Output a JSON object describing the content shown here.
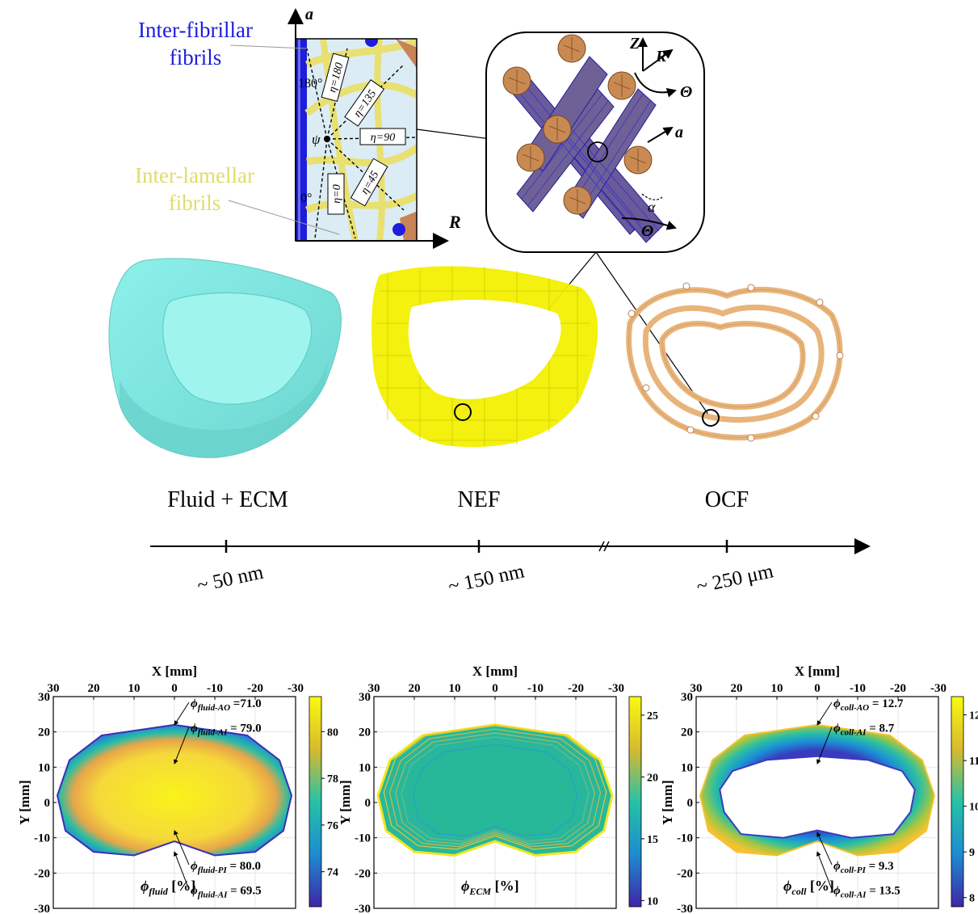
{
  "top": {
    "inset_labels": {
      "inter_fibrillar_line1": "Inter-fibrillar",
      "inter_fibrillar_line2": "fibrils",
      "inter_lamellar_line1": "Inter-lamellar",
      "inter_lamellar_line2": "fibrils",
      "axis_a": "a",
      "axis_R": "R",
      "psi": "ψ",
      "deg180": "180°",
      "deg0": "0°",
      "eta180": "η=180",
      "eta135": "η=135",
      "eta90": "η=90",
      "eta45": "η=45",
      "eta0": "η=0"
    },
    "lamella_labels": {
      "Z": "Z",
      "R": "R",
      "Theta": "Θ",
      "a": "a",
      "alpha": "α",
      "Theta2": "Θ"
    },
    "components": [
      "Fluid + ECM",
      "NEF",
      "OCF"
    ],
    "scales": [
      "~ 50 nm",
      "~ 150 nm",
      "~ 250 μm"
    ],
    "colors": {
      "fluid": "#7fe8e0",
      "nef": "#f2f000",
      "ocf": "#e8b47a",
      "inter_fibrillar": "#1d1ddb",
      "inter_lamellar": "#e8e070"
    }
  },
  "maps": [
    {
      "xlabel": "X [mm]",
      "ylabel": "Y [mm]",
      "xticks": [
        "30",
        "20",
        "10",
        "0",
        "-10",
        "-20",
        "-30"
      ],
      "yticks": [
        "30",
        "20",
        "10",
        "0",
        "-10",
        "-20",
        "-30"
      ],
      "colorbar": {
        "min": 72.5,
        "max": 81.5,
        "ticks": [
          "80",
          "78",
          "76",
          "74"
        ]
      },
      "symbol": "ϕ",
      "unit_sub": "fluid",
      "unit_suffix": " [%]",
      "annotations": [
        {
          "sub": "fluid-AO",
          "value": " =71.0"
        },
        {
          "sub": "fluid-AI",
          "value": " = 79.0"
        },
        {
          "sub": "fluid-PI",
          "value": " = 80.0"
        },
        {
          "sub": "fluid-AI",
          "value": " = 69.5"
        }
      ]
    },
    {
      "xlabel": "X [mm]",
      "ylabel": "Y [mm]",
      "xticks": [
        "30",
        "20",
        "10",
        "0",
        "-10",
        "-20",
        "-30"
      ],
      "yticks": [
        "30",
        "20",
        "10",
        "0",
        "-10",
        "-20",
        "-30"
      ],
      "colorbar": {
        "min": 9.5,
        "max": 26.5,
        "ticks": [
          "25",
          "20",
          "15",
          "10"
        ]
      },
      "symbol": "ϕ",
      "unit_sub": "ECM",
      "unit_suffix": " [%]",
      "annotations": []
    },
    {
      "xlabel": "X [mm]",
      "ylabel": "Y [mm]",
      "xticks": [
        "30",
        "20",
        "10",
        "0",
        "-10",
        "-20",
        "-30"
      ],
      "yticks": [
        "30",
        "20",
        "10",
        "0",
        "-10",
        "-20",
        "-30"
      ],
      "colorbar": {
        "min": 7.8,
        "max": 12.4,
        "ticks": [
          "12",
          "11",
          "10",
          "9",
          "8"
        ]
      },
      "symbol": "ϕ",
      "unit_sub": "coll",
      "unit_suffix": " [%]",
      "annotations": [
        {
          "sub": "coll-AO",
          "value": " = 12.7"
        },
        {
          "sub": "coll-AI",
          "value": " = 8.7"
        },
        {
          "sub": "coll-PI",
          "value": " = 9.3"
        },
        {
          "sub": "coll-AI",
          "value": " = 13.5"
        }
      ]
    }
  ]
}
